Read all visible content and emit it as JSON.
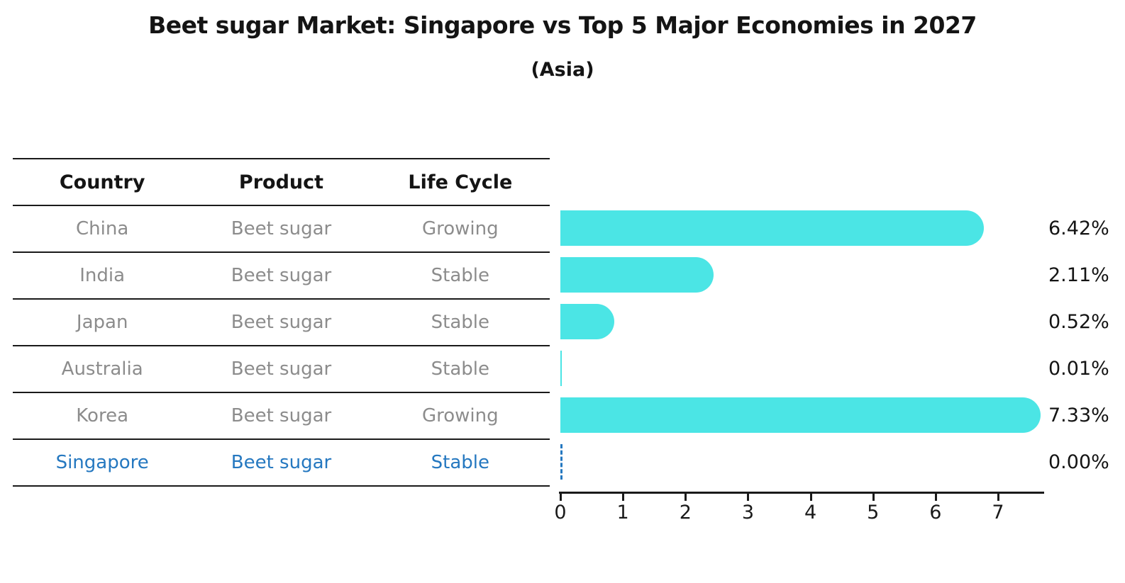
{
  "header": {
    "title": "Beet sugar Market: Singapore vs Top 5 Major Economies in 2027",
    "subtitle": "(Asia)"
  },
  "table": {
    "headers": [
      "Country",
      "Product",
      "Life Cycle"
    ],
    "rows": [
      {
        "country": "China",
        "product": "Beet sugar",
        "life_cycle": "Growing",
        "highlight": false
      },
      {
        "country": "India",
        "product": "Beet sugar",
        "life_cycle": "Stable",
        "highlight": false
      },
      {
        "country": "Japan",
        "product": "Beet sugar",
        "life_cycle": "Stable",
        "highlight": false
      },
      {
        "country": "Australia",
        "product": "Beet sugar",
        "life_cycle": "Stable",
        "highlight": false
      },
      {
        "country": "Korea",
        "product": "Beet sugar",
        "life_cycle": "Growing",
        "highlight": false
      },
      {
        "country": "Singapore",
        "product": "Beet sugar",
        "life_cycle": "Stable",
        "highlight": true
      }
    ]
  },
  "chart_data": {
    "type": "bar",
    "orientation": "horizontal",
    "title": "Beet sugar Market: Singapore vs Top 5 Major Economies in 2027",
    "subtitle": "(Asia)",
    "categories": [
      "China",
      "India",
      "Japan",
      "Australia",
      "Korea",
      "Singapore"
    ],
    "values": [
      6.42,
      2.11,
      0.52,
      0.01,
      7.33,
      0.0
    ],
    "value_labels": [
      "6.42%",
      "2.11%",
      "0.52%",
      "0.01%",
      "7.33%",
      "0.00%"
    ],
    "x_ticks": [
      "0",
      "1",
      "2",
      "3",
      "4",
      "5",
      "6",
      "7"
    ],
    "xlim": [
      0,
      7.75
    ],
    "grid": "off",
    "legend": "none",
    "highlight_index": 5,
    "highlight_marker": "dashed-zero-line"
  },
  "colors": {
    "bar": "#4be5e5",
    "highlight": "#2578c0",
    "table_text": "#8c8c8c",
    "heading_text": "#141414",
    "line": "#1a1a1a"
  }
}
